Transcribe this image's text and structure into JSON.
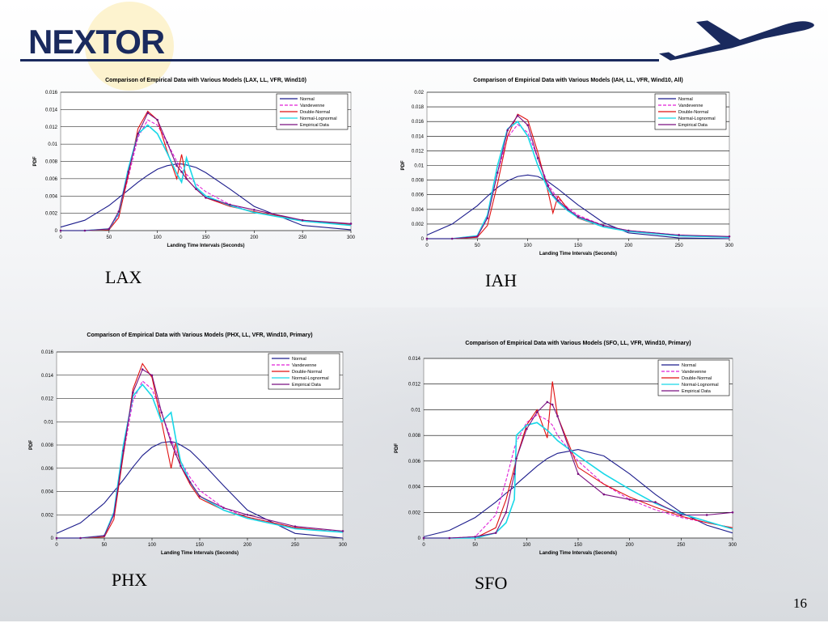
{
  "header": {
    "logo_text": "NEXTOR",
    "page_number": "16",
    "brand_color": "#1a2a5e",
    "plane_icon": "airplane-icon"
  },
  "labels": {
    "lax": "LAX",
    "iah": "IAH",
    "phx": "PHX",
    "sfo": "SFO"
  },
  "legend": [
    "Normal",
    "Vandevenne",
    "Double-Normal",
    "Normal-Lognormal",
    "Empirical Data"
  ],
  "series_colors": {
    "Normal": "#1c1c8c",
    "Vandevenne": "#e020d8",
    "Double-Normal": "#e01010",
    "Normal-Lognormal": "#18d8e8",
    "Empirical Data": "#7a1080"
  },
  "chart_data": [
    {
      "type": "line",
      "title": "Comparison of Empirical Data with Various Models (LAX, LL, VFR, Wind10)",
      "xlabel": "Landing Time Intervals (Seconds)",
      "ylabel": "PDF",
      "xlim": [
        0,
        300
      ],
      "ylim": [
        0,
        0.016
      ],
      "xticks": [
        "0",
        "50",
        "100",
        "150",
        "200",
        "250",
        "300"
      ],
      "yticks": [
        "0",
        "0.002",
        "0.004",
        "0.006",
        "0.008",
        "0.01",
        "0.012",
        "0.014",
        "0.016"
      ],
      "grid": "horizontal",
      "legend_position": "top-right",
      "x": [
        0,
        25,
        50,
        60,
        70,
        80,
        90,
        100,
        110,
        120,
        125,
        130,
        140,
        150,
        175,
        200,
        250,
        300
      ],
      "series": [
        {
          "name": "Normal",
          "values": [
            0.0004,
            0.0012,
            0.0029,
            0.0038,
            0.0047,
            0.0056,
            0.0064,
            0.0071,
            0.0075,
            0.0077,
            0.0077,
            0.0076,
            0.0073,
            0.0067,
            0.0048,
            0.0028,
            0.0006,
            0.0001
          ]
        },
        {
          "name": "Vandevenne",
          "values": [
            0,
            0,
            0.0002,
            0.0018,
            0.0062,
            0.0108,
            0.0128,
            0.0122,
            0.0102,
            0.008,
            0.0072,
            0.0065,
            0.0054,
            0.0045,
            0.003,
            0.0021,
            0.0011,
            0.0006
          ]
        },
        {
          "name": "Double-Normal",
          "values": [
            0,
            0,
            0.0001,
            0.0015,
            0.0065,
            0.0118,
            0.0138,
            0.0128,
            0.0092,
            0.006,
            0.0088,
            0.006,
            0.0048,
            0.0038,
            0.0028,
            0.0022,
            0.0012,
            0.0007
          ]
        },
        {
          "name": "Normal-Lognormal",
          "values": [
            0,
            0,
            0.0002,
            0.002,
            0.0072,
            0.0112,
            0.0122,
            0.0112,
            0.009,
            0.0066,
            0.0056,
            0.0084,
            0.005,
            0.004,
            0.0029,
            0.0021,
            0.0011,
            0.0006
          ]
        },
        {
          "name": "Empirical Data",
          "values": [
            0,
            0,
            0.0002,
            0.0022,
            0.0068,
            0.0112,
            0.0136,
            0.0128,
            0.0102,
            0.0075,
            0.0068,
            0.006,
            0.0048,
            0.0038,
            0.003,
            0.0024,
            0.0012,
            0.0008
          ]
        }
      ]
    },
    {
      "type": "line",
      "title": "Comparison of Empirical Data with Various Models (IAH, LL, VFR, Wind10, All)",
      "xlabel": "Landing Time Intervals (Seconds)",
      "ylabel": "PDF",
      "xlim": [
        0,
        300
      ],
      "ylim": [
        0,
        0.02
      ],
      "xticks": [
        "0",
        "50",
        "100",
        "150",
        "200",
        "250",
        "300"
      ],
      "yticks": [
        "0",
        "0.002",
        "0.004",
        "0.006",
        "0.008",
        "0.01",
        "0.012",
        "0.014",
        "0.016",
        "0.018",
        "0.02"
      ],
      "grid": "horizontal",
      "legend_position": "top-right",
      "x": [
        0,
        25,
        50,
        60,
        70,
        80,
        90,
        100,
        110,
        120,
        125,
        130,
        140,
        150,
        175,
        200,
        250,
        300
      ],
      "series": [
        {
          "name": "Normal",
          "values": [
            0.0005,
            0.002,
            0.0045,
            0.0058,
            0.007,
            0.0079,
            0.0085,
            0.0087,
            0.0085,
            0.0078,
            0.0073,
            0.0068,
            0.0057,
            0.0046,
            0.0022,
            0.0008,
            0.0001,
            0
          ]
        },
        {
          "name": "Vandevenne",
          "values": [
            0,
            0,
            0.0004,
            0.003,
            0.009,
            0.0138,
            0.0156,
            0.0145,
            0.011,
            0.0075,
            0.0064,
            0.0055,
            0.0042,
            0.0032,
            0.0018,
            0.0011,
            0.0005,
            0.0002
          ]
        },
        {
          "name": "Double-Normal",
          "values": [
            0,
            0,
            0.0002,
            0.0018,
            0.0075,
            0.014,
            0.017,
            0.0162,
            0.0118,
            0.0065,
            0.0035,
            0.0058,
            0.004,
            0.0028,
            0.0016,
            0.001,
            0.0004,
            0.0002
          ]
        },
        {
          "name": "Normal-Lognormal",
          "values": [
            0,
            0,
            0.0004,
            0.0032,
            0.01,
            0.015,
            0.016,
            0.014,
            0.01,
            0.0068,
            0.0058,
            0.005,
            0.0038,
            0.0029,
            0.0016,
            0.001,
            0.0004,
            0.0002
          ]
        },
        {
          "name": "Empirical Data",
          "values": [
            0,
            0,
            0.0003,
            0.0028,
            0.009,
            0.0148,
            0.0168,
            0.0155,
            0.011,
            0.0072,
            0.006,
            0.0052,
            0.004,
            0.003,
            0.0018,
            0.0011,
            0.0005,
            0.0003
          ]
        }
      ]
    },
    {
      "type": "line",
      "title": "Comparison of Empirical Data with Various Models (PHX, LL, VFR, Wind10, Primary)",
      "xlabel": "Landing Time Intervals (Seconds)",
      "ylabel": "PDF",
      "xlim": [
        0,
        300
      ],
      "ylim": [
        0,
        0.016
      ],
      "xticks": [
        "0",
        "50",
        "100",
        "150",
        "200",
        "250",
        "300"
      ],
      "yticks": [
        "0",
        "0.002",
        "0.004",
        "0.006",
        "0.008",
        "0.01",
        "0.012",
        "0.014",
        "0.016"
      ],
      "grid": "horizontal",
      "legend_position": "top-right",
      "x": [
        0,
        25,
        50,
        60,
        70,
        80,
        90,
        100,
        110,
        120,
        125,
        130,
        140,
        150,
        175,
        200,
        250,
        300
      ],
      "series": [
        {
          "name": "Normal",
          "values": [
            0.0004,
            0.0013,
            0.003,
            0.004,
            0.005,
            0.0061,
            0.0071,
            0.0078,
            0.0082,
            0.0083,
            0.0082,
            0.008,
            0.0075,
            0.0067,
            0.0045,
            0.0024,
            0.0004,
            0
          ]
        },
        {
          "name": "Vandevenne",
          "values": [
            0,
            0,
            0.0002,
            0.002,
            0.0072,
            0.0118,
            0.0135,
            0.0128,
            0.0108,
            0.0085,
            0.0075,
            0.0066,
            0.0052,
            0.0041,
            0.0026,
            0.0018,
            0.0009,
            0.0005
          ]
        },
        {
          "name": "Double-Normal",
          "values": [
            0,
            0,
            0.0001,
            0.0016,
            0.0072,
            0.0128,
            0.015,
            0.0138,
            0.01,
            0.006,
            0.0082,
            0.0062,
            0.0046,
            0.0034,
            0.0024,
            0.0018,
            0.0009,
            0.0005
          ]
        },
        {
          "name": "Normal-Lognormal",
          "values": [
            0,
            0,
            0.0002,
            0.0022,
            0.008,
            0.0122,
            0.0132,
            0.0122,
            0.01,
            0.0108,
            0.0085,
            0.0066,
            0.0048,
            0.0036,
            0.0024,
            0.0017,
            0.0008,
            0.0005
          ]
        },
        {
          "name": "Empirical Data",
          "values": [
            0,
            0,
            0.0002,
            0.002,
            0.0075,
            0.0125,
            0.0145,
            0.014,
            0.0108,
            0.0082,
            0.0072,
            0.0062,
            0.0048,
            0.0036,
            0.0026,
            0.002,
            0.001,
            0.0006
          ]
        }
      ]
    },
    {
      "type": "line",
      "title": "Comparison of Empirical Data with Various Models (SFO, LL, VFR, Wind10, Primary)",
      "xlabel": "Landing Time Intervals (Seconds)",
      "ylabel": "PDF",
      "xlim": [
        0,
        300
      ],
      "ylim": [
        0,
        0.014
      ],
      "xticks": [
        "0",
        "50",
        "100",
        "150",
        "200",
        "250",
        "300"
      ],
      "yticks": [
        "0",
        "0.002",
        "0.004",
        "0.006",
        "0.008",
        "0.01",
        "0.012",
        "0.014"
      ],
      "grid": "horizontal",
      "legend_position": "top-right",
      "x": [
        0,
        25,
        50,
        70,
        80,
        88,
        90,
        100,
        110,
        120,
        125,
        130,
        150,
        175,
        200,
        225,
        250,
        275,
        300
      ],
      "series": [
        {
          "name": "Normal",
          "values": [
            0.0001,
            0.0006,
            0.0016,
            0.0028,
            0.0035,
            0.004,
            0.0042,
            0.0049,
            0.0056,
            0.0062,
            0.0064,
            0.0066,
            0.0069,
            0.0064,
            0.005,
            0.0034,
            0.002,
            0.001,
            0.0004
          ]
        },
        {
          "name": "Vandevenne",
          "values": [
            0,
            0,
            0.0001,
            0.0018,
            0.0045,
            0.007,
            0.0075,
            0.009,
            0.0096,
            0.0092,
            0.0088,
            0.008,
            0.006,
            0.0042,
            0.003,
            0.0022,
            0.0016,
            0.0012,
            0.0008
          ]
        },
        {
          "name": "Double-Normal",
          "values": [
            0,
            0,
            0,
            0.0008,
            0.003,
            0.0055,
            0.0062,
            0.0088,
            0.01,
            0.0078,
            0.0122,
            0.0095,
            0.0055,
            0.0042,
            0.0032,
            0.0024,
            0.0017,
            0.0012,
            0.0008
          ]
        },
        {
          "name": "Normal-Lognormal",
          "values": [
            0,
            0,
            0,
            0.0004,
            0.0012,
            0.003,
            0.008,
            0.0088,
            0.009,
            0.0084,
            0.008,
            0.0076,
            0.0064,
            0.005,
            0.0038,
            0.0027,
            0.0019,
            0.0013,
            0.0007
          ]
        },
        {
          "name": "Empirical Data",
          "values": [
            0,
            0,
            0.0001,
            0.0004,
            0.002,
            0.005,
            0.0062,
            0.0085,
            0.0098,
            0.0106,
            0.0104,
            0.0095,
            0.005,
            0.0034,
            0.003,
            0.0028,
            0.0018,
            0.0018,
            0.002
          ]
        }
      ]
    }
  ]
}
